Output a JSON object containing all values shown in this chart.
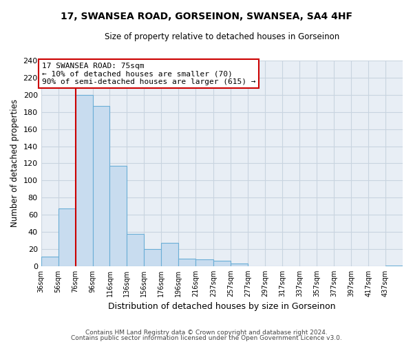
{
  "title": "17, SWANSEA ROAD, GORSEINON, SWANSEA, SA4 4HF",
  "subtitle": "Size of property relative to detached houses in Gorseinon",
  "xlabel": "Distribution of detached houses by size in Gorseinon",
  "ylabel": "Number of detached properties",
  "bin_labels": [
    "36sqm",
    "56sqm",
    "76sqm",
    "96sqm",
    "116sqm",
    "136sqm",
    "156sqm",
    "176sqm",
    "196sqm",
    "216sqm",
    "237sqm",
    "257sqm",
    "277sqm",
    "297sqm",
    "317sqm",
    "337sqm",
    "357sqm",
    "377sqm",
    "397sqm",
    "417sqm",
    "437sqm"
  ],
  "bin_edges": [
    36,
    56,
    76,
    96,
    116,
    136,
    156,
    176,
    196,
    216,
    237,
    257,
    277,
    297,
    317,
    337,
    357,
    377,
    397,
    417,
    437
  ],
  "counts": [
    11,
    67,
    200,
    187,
    117,
    38,
    20,
    27,
    9,
    8,
    6,
    3,
    0,
    0,
    0,
    0,
    0,
    0,
    0,
    0,
    1
  ],
  "bar_color": "#c8dcef",
  "bar_edge_color": "#6aaed6",
  "property_line_x": 76,
  "property_line_color": "#cc0000",
  "annotation_line1": "17 SWANSEA ROAD: 75sqm",
  "annotation_line2": "← 10% of detached houses are smaller (70)",
  "annotation_line3": "90% of semi-detached houses are larger (615) →",
  "annotation_box_color": "#ffffff",
  "annotation_box_edge": "#cc0000",
  "ylim": [
    0,
    240
  ],
  "yticks": [
    0,
    20,
    40,
    60,
    80,
    100,
    120,
    140,
    160,
    180,
    200,
    220,
    240
  ],
  "footer_line1": "Contains HM Land Registry data © Crown copyright and database right 2024.",
  "footer_line2": "Contains public sector information licensed under the Open Government Licence v3.0.",
  "background_color": "#ffffff",
  "plot_bg_color": "#e8eef5",
  "grid_color": "#c8d4e0"
}
